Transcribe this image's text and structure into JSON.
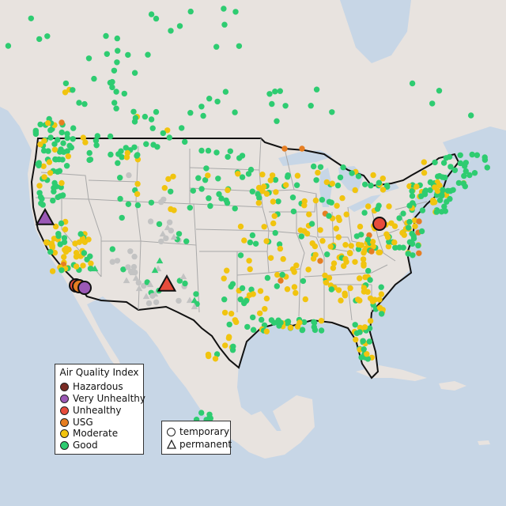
{
  "legend_aqi": {
    "title": "Air Quality Index",
    "items": [
      {
        "label": "Hazardous",
        "color": "#7a2b24"
      },
      {
        "label": "Very Unhealthy",
        "color": "#9b59b6"
      },
      {
        "label": "Unhealthy",
        "color": "#e74c3c"
      },
      {
        "label": "USG",
        "color": "#e67e22"
      },
      {
        "label": "Moderate",
        "color": "#f1c40f"
      },
      {
        "label": "Good",
        "color": "#2ecc71"
      }
    ]
  },
  "legend_type": {
    "items": [
      {
        "label": "temporary",
        "shape": "circle"
      },
      {
        "label": "permanent",
        "shape": "triangle"
      }
    ]
  },
  "colors": {
    "ocean": "#c7d6e6",
    "land": "#e8e3df",
    "border": "#111111",
    "state_lines": "#a9a9a9",
    "no_data": "#bfbfbf"
  }
}
